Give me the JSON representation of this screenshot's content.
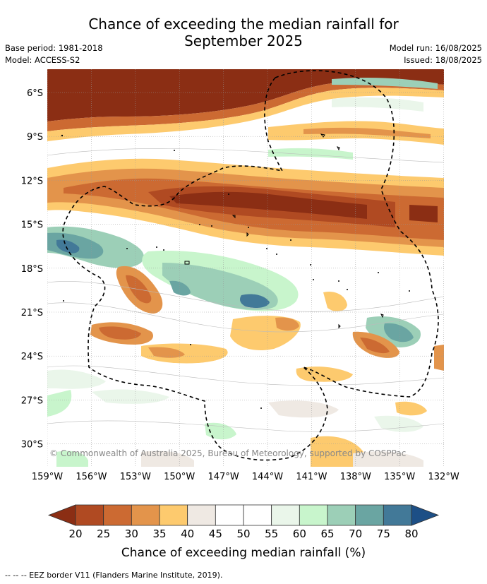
{
  "title_line1": "Chance of exceeding the median rainfall for",
  "title_line2": "September 2025",
  "base_period": "Base period: 1981-2018",
  "model": "Model: ACCESS-S2",
  "model_run": "Model run: 16/08/2025",
  "issued": "Issued: 18/08/2025",
  "copyright": "© Commonwealth of Australia 2025, Bureau of Meteorology, supported by COSPPac",
  "colorbar_label": "Chance of exceeding median rainfall (%)",
  "footnote": "--  --  -- EEZ border V11 (Flanders Marine Institute, 2019).",
  "lat_labels": [
    "6°S",
    "9°S",
    "12°S",
    "15°S",
    "18°S",
    "21°S",
    "24°S",
    "27°S",
    "30°S"
  ],
  "lon_labels": [
    "159°W",
    "156°W",
    "153°W",
    "150°W",
    "147°W",
    "144°W",
    "141°W",
    "138°W",
    "135°W",
    "132°W"
  ],
  "colorbar": {
    "ticks": [
      "20",
      "25",
      "30",
      "35",
      "40",
      "45",
      "50",
      "55",
      "60",
      "65",
      "70",
      "75",
      "80"
    ],
    "colors": [
      "#8b2e14",
      "#b04a22",
      "#cc6a32",
      "#e3944b",
      "#fdca6e",
      "#efe9e3",
      "#ffffff",
      "#ffffff",
      "#eaf6ea",
      "#c8f5cc",
      "#9ccfb7",
      "#6aa5a2",
      "#427998",
      "#1d4f86"
    ]
  }
}
